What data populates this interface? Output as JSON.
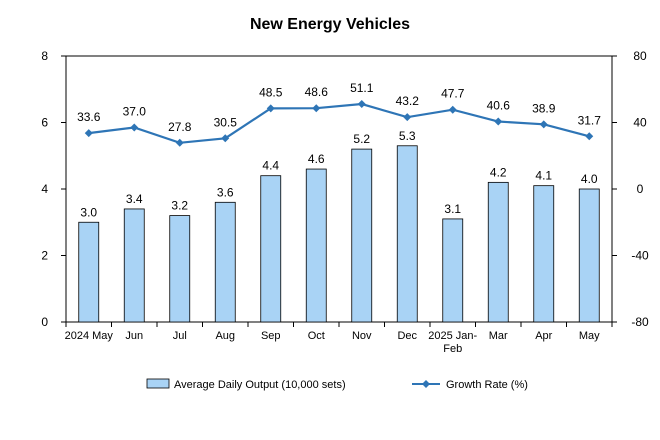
{
  "chart_data": {
    "type": "bar",
    "title": "New Energy Vehicles",
    "categories": [
      "2024 May",
      "Jun",
      "Jul",
      "Aug",
      "Sep",
      "Oct",
      "Nov",
      "Dec",
      "2025 Jan-Feb",
      "Mar",
      "Apr",
      "May"
    ],
    "category_lines": [
      [
        "2024 May"
      ],
      [
        "Jun"
      ],
      [
        "Jul"
      ],
      [
        "Aug"
      ],
      [
        "Sep"
      ],
      [
        "Oct"
      ],
      [
        "Nov"
      ],
      [
        "Dec"
      ],
      [
        "2025 Jan-",
        "Feb"
      ],
      [
        "Mar"
      ],
      [
        "Apr"
      ],
      [
        "May"
      ]
    ],
    "series": [
      {
        "name": "Average Daily Output (10,000 sets)",
        "type": "bar",
        "axis": "left",
        "color": "#a9d3f5",
        "values": [
          3.0,
          3.4,
          3.2,
          3.6,
          4.4,
          4.6,
          5.2,
          5.3,
          3.1,
          4.2,
          4.1,
          4.0
        ],
        "value_labels": [
          "3.0",
          "3.4",
          "3.2",
          "3.6",
          "4.4",
          "4.6",
          "5.2",
          "5.3",
          "3.1",
          "4.2",
          "4.1",
          "4.0"
        ]
      },
      {
        "name": "Growth Rate (%)",
        "type": "line",
        "axis": "right",
        "color": "#2e75b6",
        "values": [
          33.6,
          37.0,
          27.8,
          30.5,
          48.5,
          48.6,
          51.1,
          43.2,
          47.7,
          40.6,
          38.9,
          31.7
        ],
        "value_labels": [
          "33.6",
          "37.0",
          "27.8",
          "30.5",
          "48.5",
          "48.6",
          "51.1",
          "43.2",
          "47.7",
          "40.6",
          "38.9",
          "31.7"
        ]
      }
    ],
    "y_left": {
      "min": 0,
      "max": 8,
      "ticks": [
        "0",
        "2",
        "4",
        "6",
        "8"
      ]
    },
    "y_right": {
      "min": -80,
      "max": 80,
      "ticks": [
        "-80",
        "-40",
        "0",
        "40",
        "80"
      ]
    },
    "grid": false,
    "legend_position": "bottom"
  }
}
